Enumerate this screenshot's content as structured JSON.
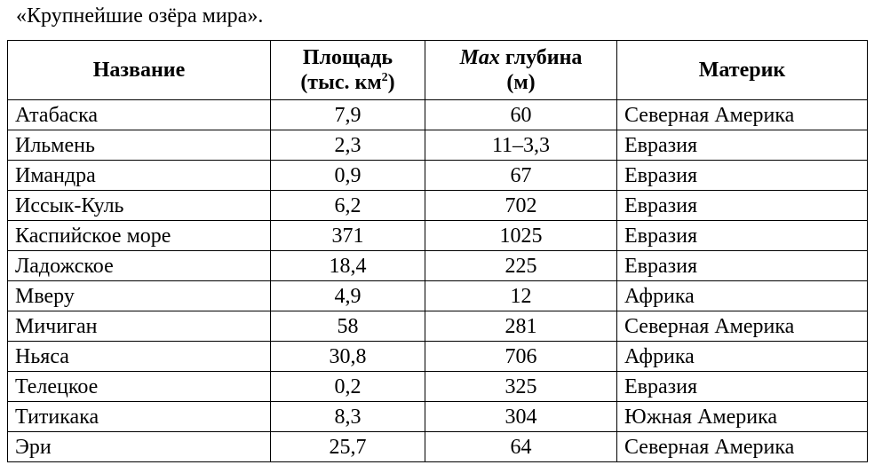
{
  "caption": "«Крупнейшие озёра мира».",
  "table": {
    "headers": {
      "name": "Название",
      "area_line1": "Площадь",
      "area_line2": "(тыс. км",
      "area_sup": "2",
      "area_close": ")",
      "depth_max": "Max",
      "depth_rest": " глубина",
      "depth_unit": "(м)",
      "continent": "Материк"
    },
    "rows": [
      {
        "name": "Атабаска",
        "area": "7,9",
        "depth": "60",
        "continent": "Северная Америка"
      },
      {
        "name": "Ильмень",
        "area": "2,3",
        "depth": "11–3,3",
        "continent": "Евразия"
      },
      {
        "name": "Имандра",
        "area": "0,9",
        "depth": "67",
        "continent": "Евразия"
      },
      {
        "name": "Иссык-Куль",
        "area": "6,2",
        "depth": "702",
        "continent": "Евразия"
      },
      {
        "name": "Каспийское море",
        "area": "371",
        "depth": "1025",
        "continent": "Евразия"
      },
      {
        "name": "Ладожское",
        "area": "18,4",
        "depth": "225",
        "continent": "Евразия"
      },
      {
        "name": "Мверу",
        "area": "4,9",
        "depth": "12",
        "continent": "Африка"
      },
      {
        "name": "Мичиган",
        "area": "58",
        "depth": "281",
        "continent": "Северная Америка"
      },
      {
        "name": "Ньяса",
        "area": "30,8",
        "depth": "706",
        "continent": "Африка"
      },
      {
        "name": "Телецкое",
        "area": "0,2",
        "depth": "325",
        "continent": "Евразия"
      },
      {
        "name": "Титикака",
        "area": "8,3",
        "depth": "304",
        "continent": "Южная Америка"
      },
      {
        "name": "Эри",
        "area": "25,7",
        "depth": "64",
        "continent": "Северная Америка"
      }
    ]
  }
}
